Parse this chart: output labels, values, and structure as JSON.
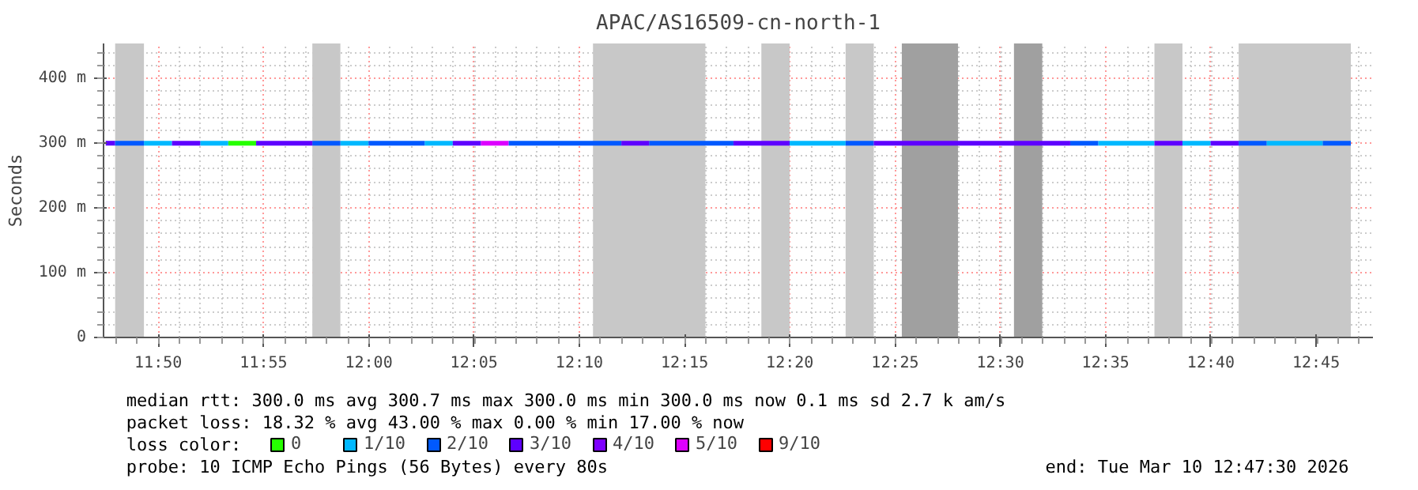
{
  "chart_data": {
    "type": "line",
    "title": "APAC/AS16509-cn-north-1",
    "ylabel": "Seconds",
    "xlim": [
      11.79,
      12.795
    ],
    "xticks": [
      {
        "value": 11.8333,
        "label": "11:50"
      },
      {
        "value": 11.9167,
        "label": "11:55"
      },
      {
        "value": 12.0,
        "label": "12:00"
      },
      {
        "value": 12.0833,
        "label": "12:05"
      },
      {
        "value": 12.1667,
        "label": "12:10"
      },
      {
        "value": 12.25,
        "label": "12:15"
      },
      {
        "value": 12.3333,
        "label": "12:20"
      },
      {
        "value": 12.4167,
        "label": "12:25"
      },
      {
        "value": 12.5,
        "label": "12:30"
      },
      {
        "value": 12.5833,
        "label": "12:35"
      },
      {
        "value": 12.6667,
        "label": "12:40"
      },
      {
        "value": 12.75,
        "label": "12:45"
      }
    ],
    "ylim": [
      0,
      454
    ],
    "yticks": [
      0,
      {
        "value": 100,
        "label": "100 m"
      },
      {
        "value": 200,
        "label": "200 m"
      },
      {
        "value": 300,
        "label": "300 m"
      },
      {
        "value": 400,
        "label": "400 m"
      }
    ],
    "grid": true,
    "legend": "bottom",
    "legend_title": "loss color:",
    "line_style": "solid",
    "series": [
      {
        "name": "0",
        "color": "#26ff00",
        "x": [
          11.8887,
          11.9108
        ],
        "values": [
          300,
          300
        ]
      },
      {
        "name": "1/10",
        "color": "#00b8ff",
        "x": [
          11.822,
          11.8442
        ],
        "values": [
          300,
          300
        ]
      },
      {
        "name": "2/10",
        "color": "#0059ff",
        "x": [
          11.799,
          11.822
        ],
        "values": [
          300,
          300
        ]
      },
      {
        "name": "3/10",
        "color": "#5e00ff",
        "x": [
          11.7917,
          11.799
        ],
        "values": [
          300,
          300
        ]
      },
      {
        "name": "4/10",
        "color": "#7e00ff"
      },
      {
        "name": "5/10",
        "color": "#dd00ff",
        "x": [
          12.0887,
          12.1108
        ],
        "values": [
          300,
          300
        ]
      },
      {
        "name": "9/10",
        "color": "#ff0000"
      },
      {
        "color": "#00b8ff",
        "x": [
          11.8665,
          11.8887
        ],
        "values": [
          300,
          300
        ]
      },
      {
        "color": "#00b8ff",
        "x": [
          11.9775,
          11.9998
        ],
        "values": [
          300,
          300
        ]
      },
      {
        "color": "#00b8ff",
        "x": [
          12.0442,
          12.0665
        ],
        "values": [
          300,
          300
        ]
      },
      {
        "color": "#00b8ff",
        "x": [
          12.3332,
          12.3775
        ],
        "values": [
          300,
          300
        ]
      },
      {
        "color": "#00b8ff",
        "x": [
          12.5775,
          12.622
        ],
        "values": [
          300,
          300
        ]
      },
      {
        "color": "#00b8ff",
        "x": [
          12.6442,
          12.6665
        ],
        "values": [
          300,
          300
        ]
      },
      {
        "color": "#00b8ff",
        "x": [
          12.7108,
          12.7553
        ],
        "values": [
          300,
          300
        ]
      },
      {
        "color": "#0059ff",
        "x": [
          11.9553,
          11.9775
        ],
        "values": [
          300,
          300
        ]
      },
      {
        "color": "#0059ff",
        "x": [
          11.9998,
          12.0442
        ],
        "values": [
          300,
          300
        ]
      },
      {
        "color": "#0059ff",
        "x": [
          12.1108,
          12.2
        ],
        "values": [
          300,
          300
        ]
      },
      {
        "color": "#0059ff",
        "x": [
          12.222,
          12.2887
        ],
        "values": [
          300,
          300
        ]
      },
      {
        "color": "#0059ff",
        "x": [
          12.3775,
          12.3998
        ],
        "values": [
          300,
          300
        ]
      },
      {
        "color": "#0059ff",
        "x": [
          12.5553,
          12.5775
        ],
        "values": [
          300,
          300
        ]
      },
      {
        "color": "#0059ff",
        "x": [
          12.6887,
          12.7108
        ],
        "values": [
          300,
          300
        ]
      },
      {
        "color": "#0059ff",
        "x": [
          12.7553,
          12.7775
        ],
        "values": [
          300,
          300
        ]
      },
      {
        "color": "#5e00ff",
        "x": [
          11.8442,
          11.8665
        ],
        "values": [
          300,
          300
        ]
      },
      {
        "color": "#5e00ff",
        "x": [
          11.9108,
          11.9553
        ],
        "values": [
          300,
          300
        ]
      },
      {
        "color": "#5e00ff",
        "x": [
          12.0665,
          12.0887
        ],
        "values": [
          300,
          300
        ]
      },
      {
        "color": "#5e00ff",
        "x": [
          12.2,
          12.222
        ],
        "values": [
          300,
          300
        ]
      },
      {
        "color": "#5e00ff",
        "x": [
          12.2887,
          12.3332
        ],
        "values": [
          300,
          300
        ]
      },
      {
        "color": "#5e00ff",
        "x": [
          12.3998,
          12.5553
        ],
        "values": [
          300,
          300
        ]
      },
      {
        "color": "#5e00ff",
        "x": [
          12.622,
          12.6442
        ],
        "values": [
          300,
          300
        ]
      },
      {
        "color": "#5e00ff",
        "x": [
          12.6665,
          12.6887
        ],
        "values": [
          300,
          300
        ]
      }
    ],
    "bands": [
      {
        "axis": "x",
        "from": 11.7992,
        "to": 11.822,
        "color": "#c8c8c8"
      },
      {
        "axis": "x",
        "from": 11.9553,
        "to": 11.9775,
        "color": "#c8c8c8"
      },
      {
        "axis": "x",
        "from": 12.1775,
        "to": 12.2665,
        "color": "#c8c8c8"
      },
      {
        "axis": "x",
        "from": 12.3108,
        "to": 12.3332,
        "color": "#c8c8c8"
      },
      {
        "axis": "x",
        "from": 12.3775,
        "to": 12.3998,
        "color": "#c8c8c8"
      },
      {
        "axis": "x",
        "from": 12.422,
        "to": 12.4665,
        "color": "#a0a0a0"
      },
      {
        "axis": "x",
        "from": 12.5108,
        "to": 12.5332,
        "color": "#a0a0a0"
      },
      {
        "axis": "x",
        "from": 12.622,
        "to": 12.6442,
        "color": "#c8c8c8"
      },
      {
        "axis": "x",
        "from": 12.6887,
        "to": 12.7775,
        "color": "#c8c8c8"
      }
    ],
    "annotations": [
      "median rtt:  300.0 ms avg  300.7 ms max  300.0 ms min  300.0 ms now  0.1 ms sd  2.7 k am/s",
      "packet loss: 18.32 % avg  43.00 % max  0.00 % min  17.00 % now",
      "probe:       10 ICMP Echo Pings (56 Bytes) every 80s",
      "end: Tue Mar 10 12:47:30 2026"
    ]
  }
}
